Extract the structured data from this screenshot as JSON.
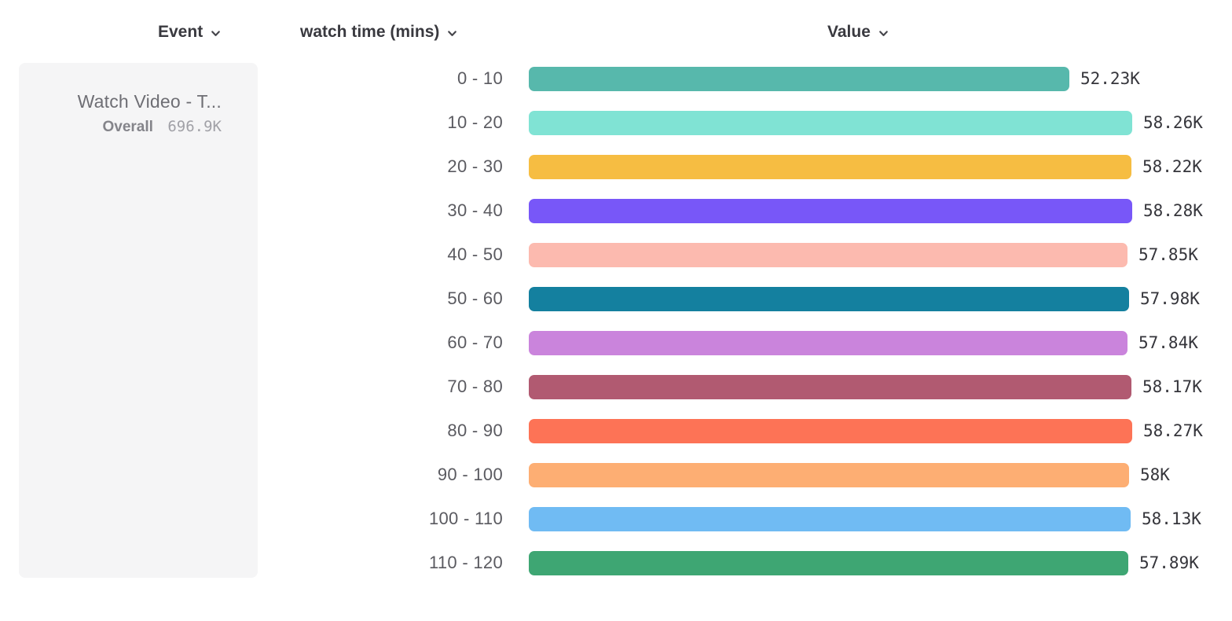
{
  "header": {
    "event_label": "Event",
    "series_label": "watch time (mins)",
    "value_label": "Value"
  },
  "event_card": {
    "name": "Watch Video - T...",
    "overall_label": "Overall",
    "overall_value": "696.9K"
  },
  "icons": {
    "chevron": "chevron-down-icon"
  },
  "chart_data": {
    "type": "bar",
    "orientation": "horizontal",
    "title": "",
    "xlabel": "Value",
    "ylabel": "watch time (mins)",
    "xlim": [
      0,
      58280
    ],
    "grid": false,
    "categories": [
      "0 - 10",
      "10 - 20",
      "20 - 30",
      "30 - 40",
      "40 - 50",
      "50 - 60",
      "60 - 70",
      "70 - 80",
      "80 - 90",
      "90 - 100",
      "100 - 110",
      "110 - 120"
    ],
    "values": [
      52230,
      58260,
      58220,
      58280,
      57850,
      57980,
      57840,
      58170,
      58270,
      58000,
      58130,
      57890
    ],
    "value_labels": [
      "52.23K",
      "58.26K",
      "58.22K",
      "58.28K",
      "57.85K",
      "57.98K",
      "57.84K",
      "58.17K",
      "58.27K",
      "58K",
      "58.13K",
      "57.89K"
    ],
    "bar_colors": [
      "#57b8ac",
      "#80e3d4",
      "#f6bd42",
      "#7857f8",
      "#fcbaaf",
      "#14809f",
      "#ca84dc",
      "#b15a71",
      "#fd7356",
      "#fdae73",
      "#70bbf3",
      "#3ea673"
    ]
  }
}
